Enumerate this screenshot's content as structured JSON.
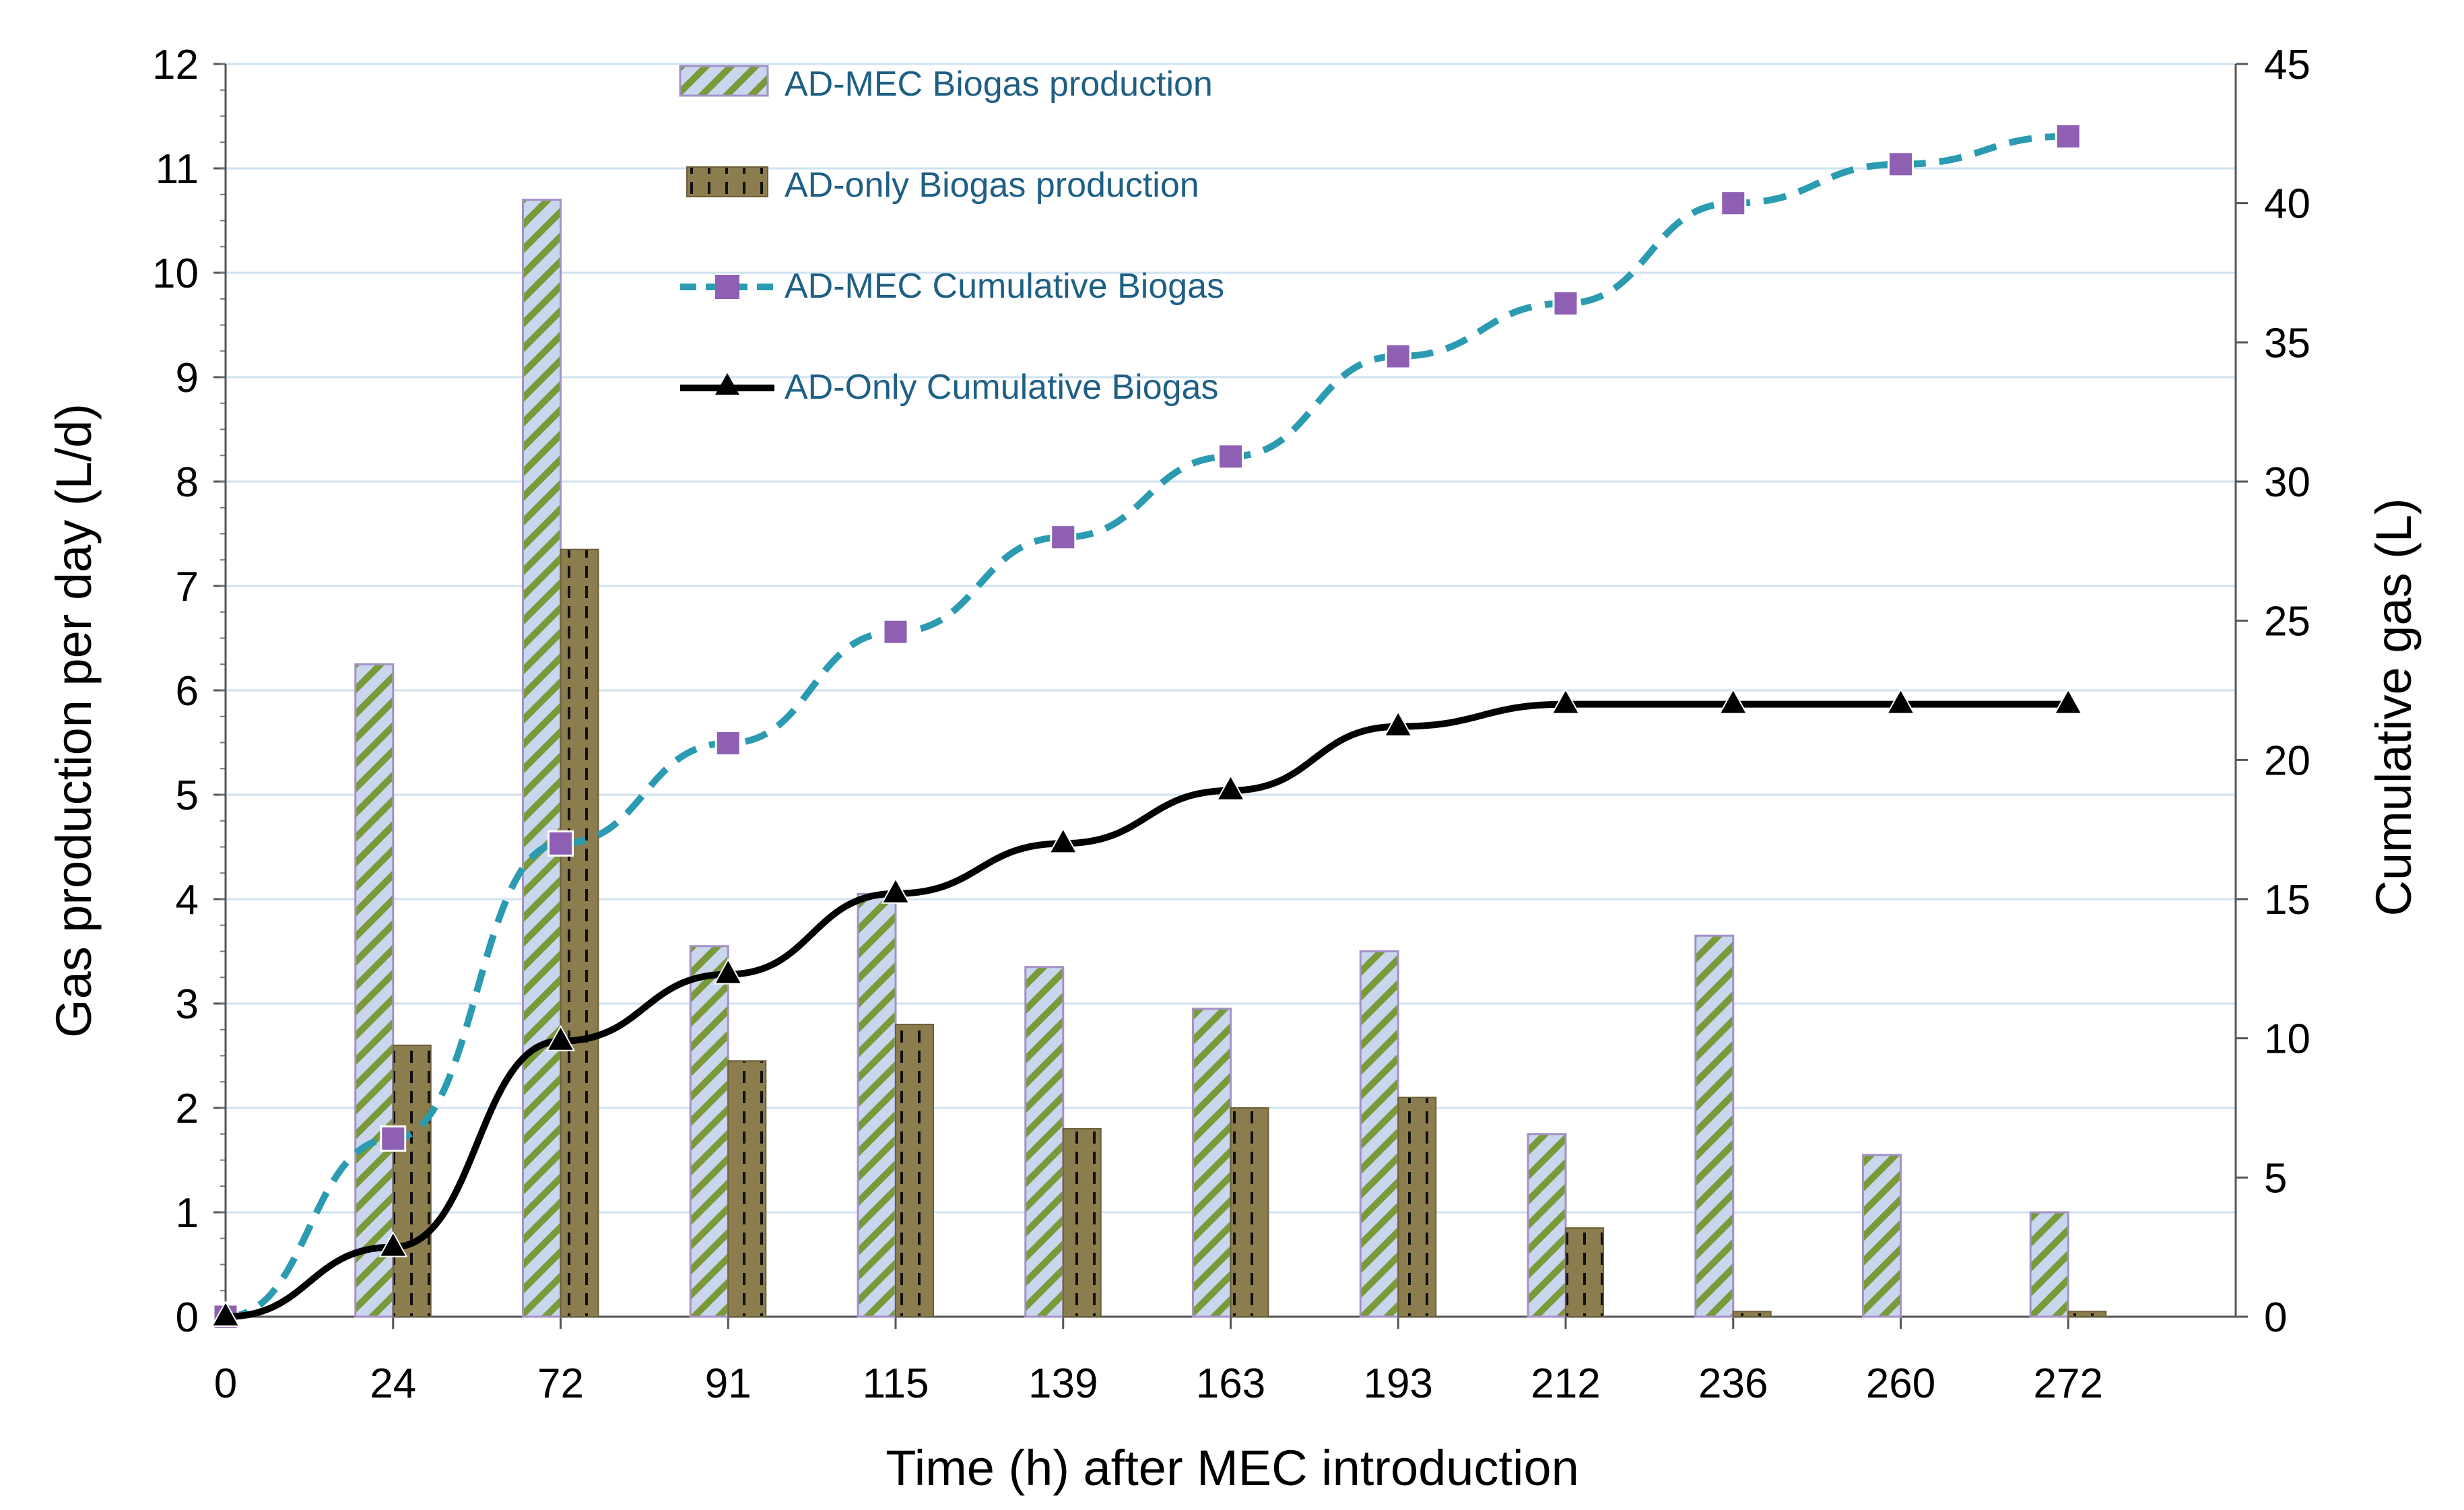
{
  "chart_data": {
    "type": "bar",
    "categories": [
      "0",
      "24",
      "72",
      "91",
      "115",
      "139",
      "163",
      "193",
      "212",
      "236",
      "260",
      "272"
    ],
    "xlabel": "Time (h) after MEC introduction",
    "ylabel": "Gas production per day (L/d)",
    "y2label": "Cumulative gas (L)",
    "ylim": [
      0,
      12
    ],
    "y2lim": [
      0,
      45
    ],
    "yticks": [
      "0",
      "1",
      "2",
      "3",
      "4",
      "5",
      "6",
      "7",
      "8",
      "9",
      "10",
      "11",
      "12"
    ],
    "y2ticks": [
      "0",
      "5",
      "10",
      "15",
      "20",
      "25",
      "30",
      "35",
      "40",
      "45"
    ],
    "grid": "horizontal",
    "legend_position": "top-left",
    "series": [
      {
        "name": "AD-MEC Biogas production",
        "type": "bar",
        "axis": "left",
        "color": "#7a9a3a",
        "fill": "#c9d6ee",
        "values": [
          0,
          6.25,
          10.7,
          3.55,
          4.05,
          3.35,
          2.95,
          3.5,
          1.75,
          3.65,
          1.55,
          1.0
        ]
      },
      {
        "name": "AD-only Biogas production",
        "type": "bar",
        "axis": "left",
        "color": "#8b7d4e",
        "values": [
          0,
          2.6,
          7.35,
          2.45,
          2.8,
          1.8,
          2.0,
          2.1,
          0.85,
          0.05,
          0,
          0.05
        ]
      },
      {
        "name": "AD-MEC Cumulative Biogas",
        "type": "line",
        "axis": "right",
        "color": "#2a9bb0",
        "marker_color": "#8e5fb2",
        "marker": "square",
        "values": [
          0,
          6.4,
          17.0,
          20.6,
          24.6,
          28.0,
          30.9,
          34.5,
          36.4,
          40.0,
          41.4,
          42.4
        ]
      },
      {
        "name": "AD-Only Cumulative Biogas",
        "type": "line",
        "axis": "right",
        "color": "#000000",
        "marker": "triangle",
        "values": [
          0,
          2.5,
          9.9,
          12.3,
          15.2,
          17.0,
          18.9,
          21.2,
          22.0,
          22.0,
          22.0,
          22.0
        ]
      }
    ]
  }
}
